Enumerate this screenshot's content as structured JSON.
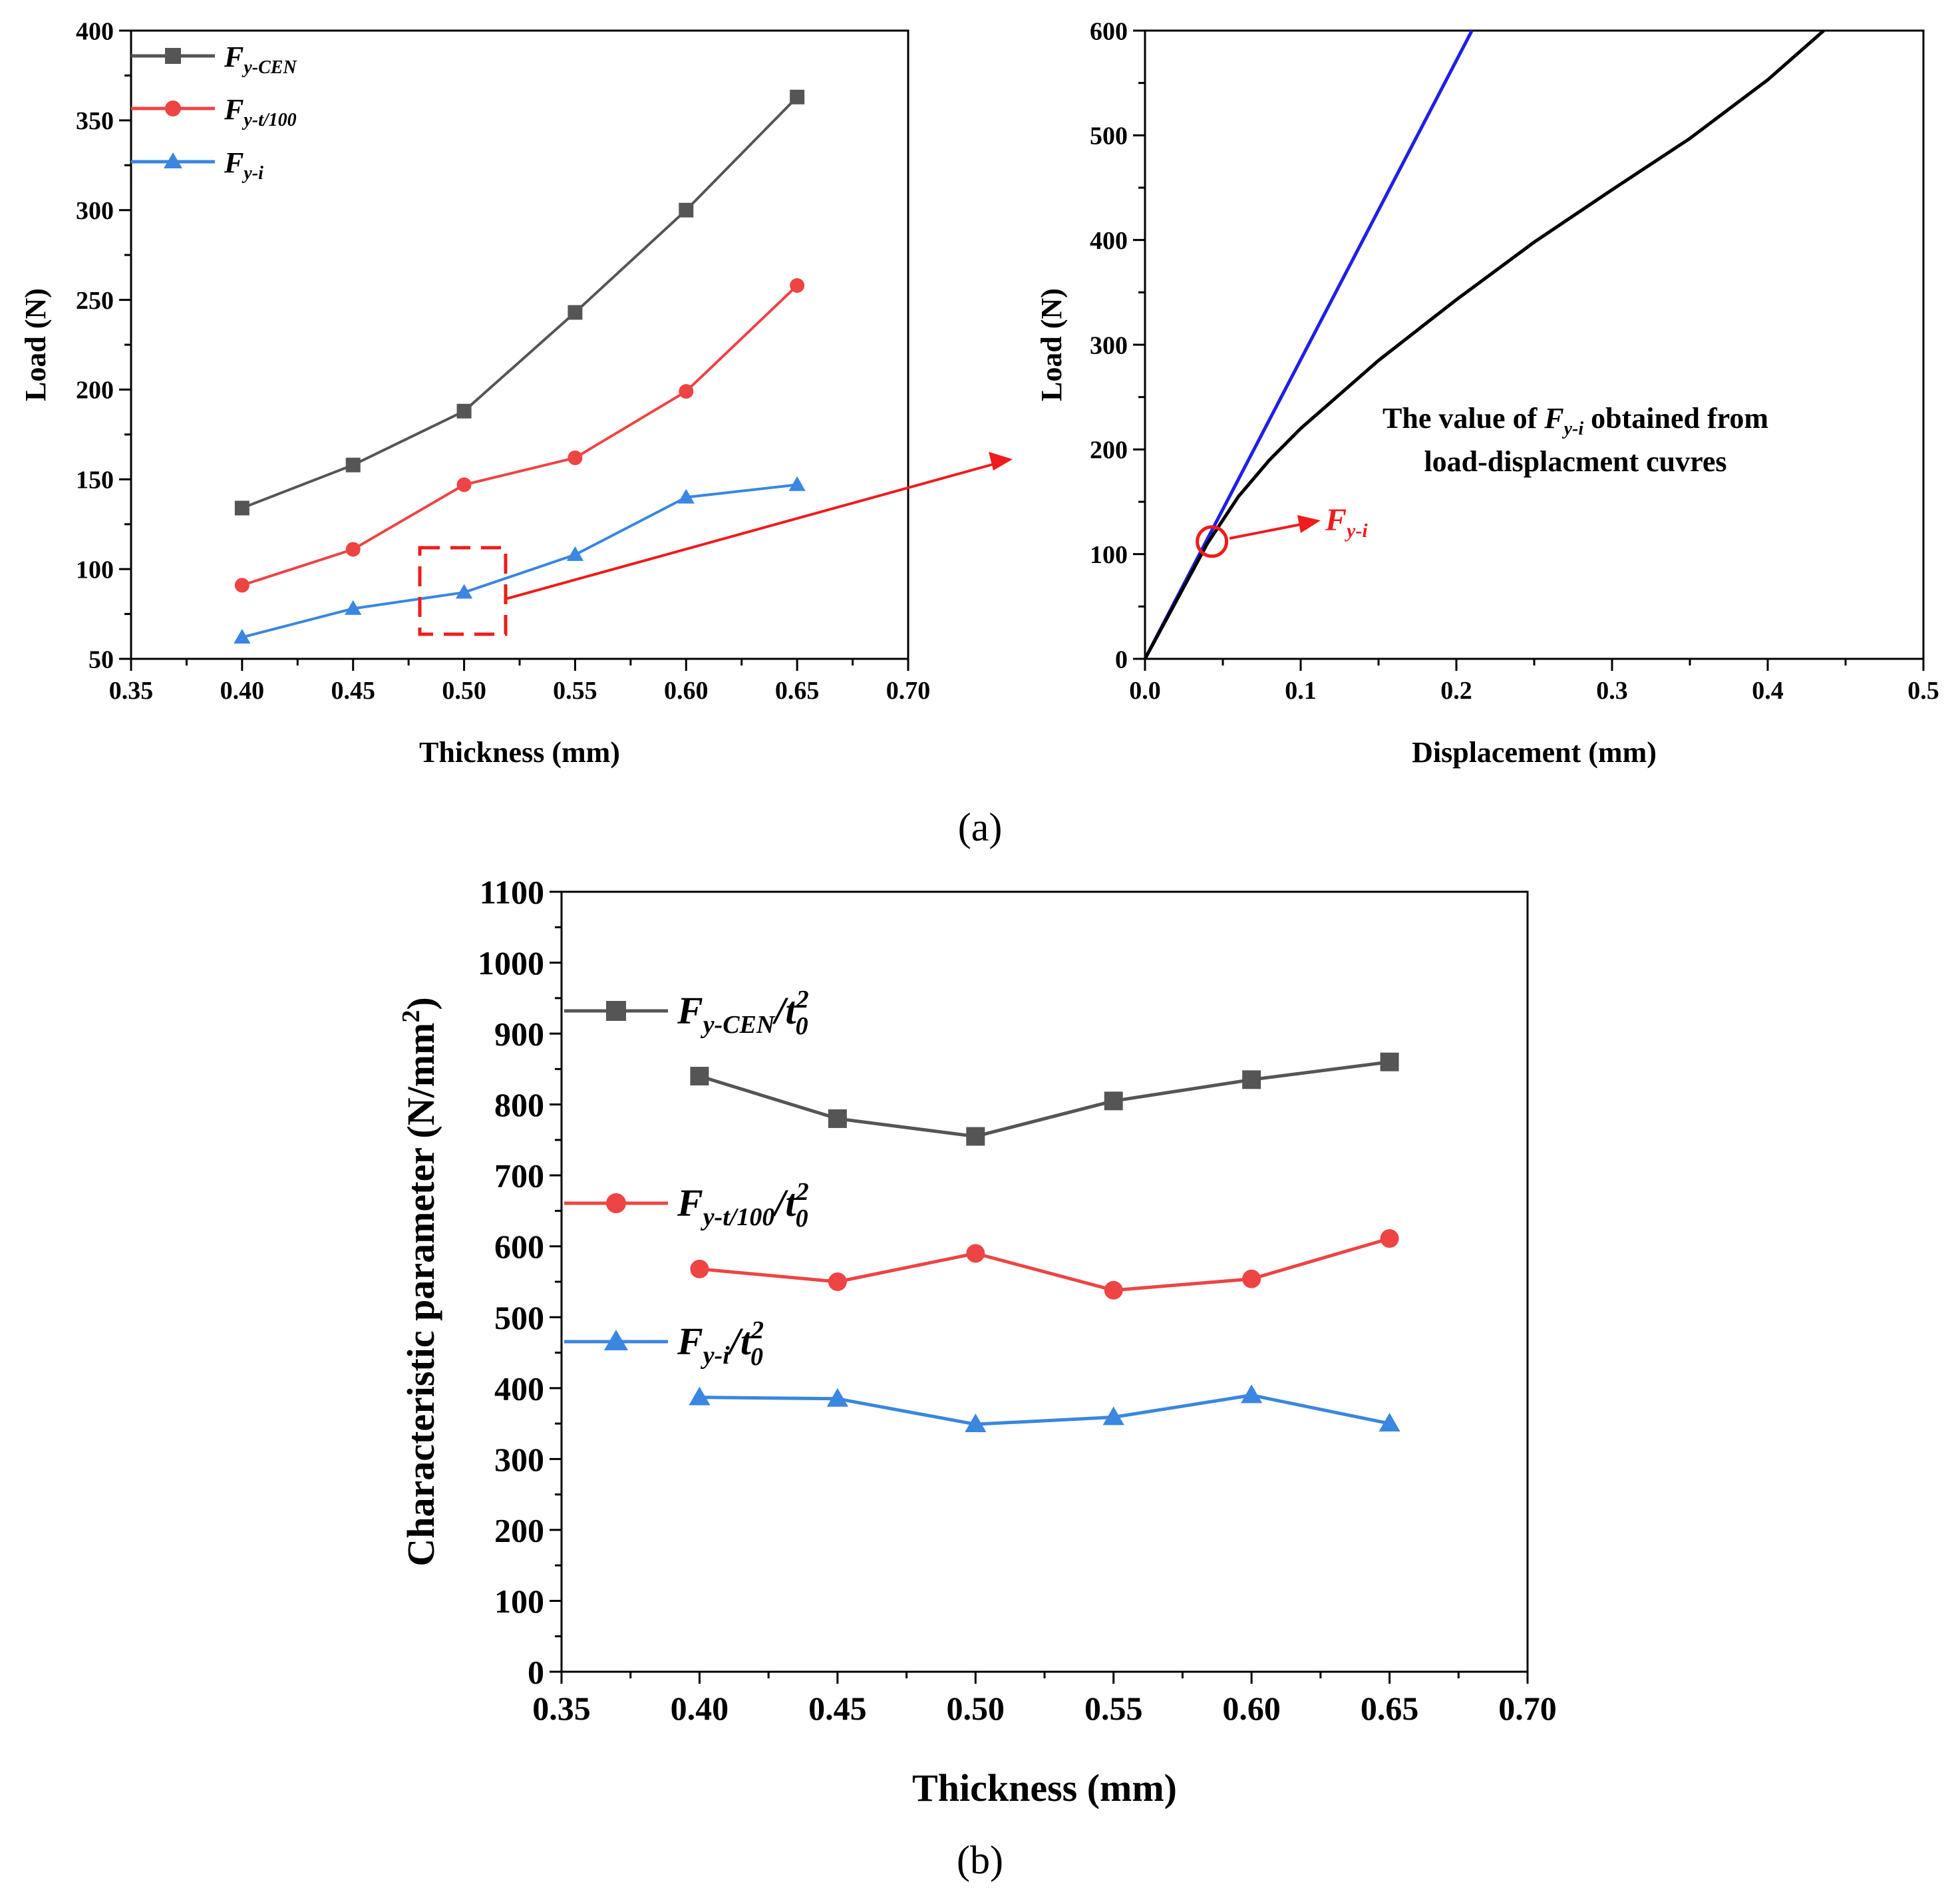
{
  "panel_labels": {
    "a": "(a)",
    "b": "(b)"
  },
  "colors": {
    "black_series": "#555555",
    "red_series": "#ee4444",
    "blue_series": "#3a86e0",
    "fit_line": "#1f1fe6",
    "curve": "#000000",
    "annot_red": "#ee1c1c"
  },
  "chart_data": [
    {
      "id": "a-left",
      "type": "line",
      "xlabel": "Thickness (mm)",
      "ylabel": "Load (N)",
      "xlim": [
        0.35,
        0.7
      ],
      "ylim": [
        50,
        400
      ],
      "xticks": [
        "0.35",
        "0.40",
        "0.45",
        "0.50",
        "0.55",
        "0.60",
        "0.65",
        "0.70"
      ],
      "yticks": [
        "50",
        "100",
        "150",
        "200",
        "250",
        "300",
        "350",
        "400"
      ],
      "x": [
        0.4,
        0.45,
        0.5,
        0.55,
        0.6,
        0.65
      ],
      "legend": [
        {
          "main": "F",
          "sub": "y-CEN"
        },
        {
          "main": "F",
          "sub": "y-t/100"
        },
        {
          "main": "F",
          "sub": "y-i"
        }
      ],
      "series": [
        {
          "name": "Fy-CEN",
          "marker": "square",
          "values": [
            134,
            158,
            188,
            243,
            300,
            363
          ]
        },
        {
          "name": "Fy-t/100",
          "marker": "circle",
          "values": [
            91,
            111,
            147,
            162,
            199,
            258
          ]
        },
        {
          "name": "Fy-i",
          "marker": "triangle",
          "values": [
            62,
            78,
            87,
            108,
            140,
            147
          ]
        }
      ],
      "highlight_x": 0.5
    },
    {
      "id": "a-right",
      "type": "line",
      "xlabel": "Displacement (mm)",
      "ylabel": "Load (N)",
      "xlim": [
        0.0,
        0.5
      ],
      "ylim": [
        0,
        600
      ],
      "xticks": [
        "0.0",
        "0.1",
        "0.2",
        "0.3",
        "0.4",
        "0.5"
      ],
      "yticks": [
        "0",
        "100",
        "200",
        "300",
        "400",
        "500",
        "600"
      ],
      "series": [
        {
          "name": "load-displacement curve",
          "x": [
            0,
            0.02,
            0.04,
            0.06,
            0.08,
            0.1,
            0.15,
            0.2,
            0.25,
            0.3,
            0.35,
            0.4,
            0.436
          ],
          "values": [
            0,
            55,
            110,
            155,
            190,
            220,
            285,
            343,
            398,
            448,
            497,
            553,
            600
          ]
        },
        {
          "name": "initial stiffness line",
          "x": [
            0,
            0.21
          ],
          "values": [
            0,
            600
          ]
        }
      ],
      "annotation_line1_pre": "The value of ",
      "annotation_main": "F",
      "annotation_sub": "y-i",
      "annotation_line1_post": " obtained from",
      "annotation_line2": "load-displacment cuvres",
      "marker_label_main": "F",
      "marker_label_sub": "y-i",
      "marker_point": {
        "x": 0.043,
        "y": 112
      }
    },
    {
      "id": "b",
      "type": "line",
      "xlabel": "Thickness (mm)",
      "ylabel": "Characteristic parameter (N/mm²)",
      "ylabel_pre": "Characteristic parameter (N/mm",
      "ylabel_sup": "2",
      "ylabel_post": ")",
      "xlim": [
        0.35,
        0.7
      ],
      "ylim": [
        0,
        1100
      ],
      "xticks": [
        "0.35",
        "0.40",
        "0.45",
        "0.50",
        "0.55",
        "0.60",
        "0.65",
        "0.70"
      ],
      "yticks": [
        "0",
        "100",
        "200",
        "300",
        "400",
        "500",
        "600",
        "700",
        "800",
        "900",
        "1000",
        "1100"
      ],
      "x": [
        0.4,
        0.45,
        0.5,
        0.55,
        0.6,
        0.65
      ],
      "legend": [
        {
          "main": "F",
          "sub": "y-CEN",
          "div": "/t",
          "sup": "2",
          "sub2": "0"
        },
        {
          "main": "F",
          "sub": "y-t/100",
          "div": "/t",
          "sup": "2",
          "sub2": "0"
        },
        {
          "main": "F",
          "sub": "y-i",
          "div": "/t",
          "sup": "2",
          "sub2": "0"
        }
      ],
      "series": [
        {
          "name": "Fy-CEN/t0^2",
          "marker": "square",
          "values": [
            840,
            780,
            755,
            805,
            835,
            860
          ]
        },
        {
          "name": "Fy-t/100/t0^2",
          "marker": "circle",
          "values": [
            568,
            550,
            590,
            538,
            554,
            611
          ]
        },
        {
          "name": "Fy-i/t0^2",
          "marker": "triangle",
          "values": [
            387,
            385,
            349,
            359,
            390,
            350
          ]
        }
      ]
    }
  ]
}
